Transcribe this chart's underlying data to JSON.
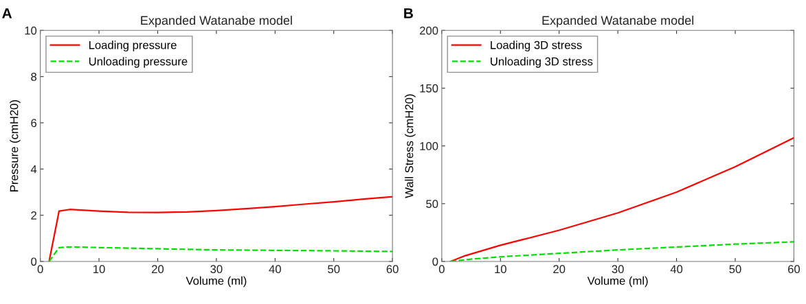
{
  "chart_data": [
    {
      "type": "line",
      "title": "Expanded Watanabe model",
      "xlabel": "Volume (ml)",
      "ylabel": "Pressure (cmH20)",
      "annotations": [
        "A"
      ],
      "xlim": [
        0,
        60
      ],
      "xticks": [
        0,
        10,
        20,
        30,
        40,
        50,
        60
      ],
      "ylim": [
        0,
        10
      ],
      "yticks": [
        0,
        2,
        4,
        6,
        8,
        10
      ],
      "grid": false,
      "legend": "top left",
      "series": [
        {
          "name": "Loading pressure",
          "color": "#ff0000",
          "line_style": "solid",
          "x": [
            1.5,
            3.2,
            5,
            10,
            15,
            20,
            25,
            30,
            35,
            40,
            45,
            50,
            55,
            60
          ],
          "values": [
            0,
            2.18,
            2.25,
            2.18,
            2.13,
            2.12,
            2.14,
            2.2,
            2.28,
            2.37,
            2.48,
            2.58,
            2.7,
            2.8
          ]
        },
        {
          "name": "Unloading pressure",
          "color": "#00dd00",
          "line_style": "dashed",
          "x": [
            1.5,
            3.2,
            5,
            10,
            20,
            30,
            40,
            50,
            60
          ],
          "values": [
            0,
            0.6,
            0.63,
            0.6,
            0.55,
            0.5,
            0.48,
            0.46,
            0.43
          ]
        }
      ]
    },
    {
      "type": "line",
      "title": "Expanded Watanabe model",
      "xlabel": "Volume (ml)",
      "ylabel": "Wall Stress (cmH20)",
      "annotations": [
        "B"
      ],
      "xlim": [
        0,
        60
      ],
      "xticks": [
        0,
        10,
        20,
        30,
        40,
        50,
        60
      ],
      "ylim": [
        0,
        200
      ],
      "yticks": [
        0,
        50,
        100,
        150,
        200
      ],
      "grid": false,
      "legend": "top left",
      "series": [
        {
          "name": "Loading 3D stress",
          "color": "#ff0000",
          "line_style": "solid",
          "x": [
            1.5,
            4,
            10,
            20,
            30,
            40,
            50,
            60
          ],
          "values": [
            0,
            5,
            14,
            27,
            42,
            60,
            82,
            107
          ]
        },
        {
          "name": "Unloading 3D stress",
          "color": "#00dd00",
          "line_style": "dashed",
          "x": [
            1.5,
            5,
            10,
            20,
            30,
            40,
            50,
            60
          ],
          "values": [
            0,
            2,
            4,
            7,
            10,
            12.5,
            15,
            17
          ]
        }
      ]
    }
  ]
}
